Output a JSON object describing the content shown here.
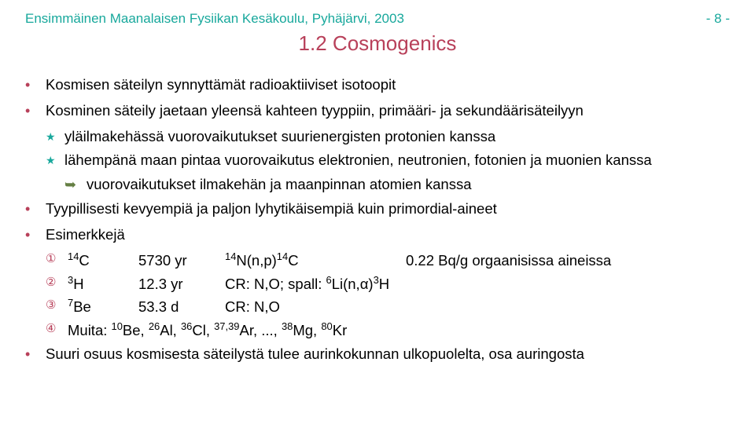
{
  "colors": {
    "header": "#18a89c",
    "title": "#b8405a",
    "bullet_top": "#b8405a",
    "star": "#18a89c",
    "arrow": "#657f43",
    "enum": "#b8405a",
    "text": "#000000"
  },
  "header": {
    "left": "Ensimmäinen Maanalaisen Fysiikan Kesäkoulu, Pyhäjärvi, 2003",
    "right": "-   8   -"
  },
  "section_title": "1.2 Cosmogenics",
  "items": {
    "b1": "Kosmisen säteilyn synnyttämät radioaktiiviset isotoopit",
    "b2": "Kosminen säteily jaetaan yleensä kahteen tyyppiin, primääri- ja sekundäärisäteilyyn",
    "s2a": "yläilmakehässä vuorovaikutukset suurienergisten protonien kanssa",
    "s2b": "lähempänä maan pintaa vuorovaikutus elektronien, neutronien, fotonien ja muonien kanssa",
    "a2b1": "vuorovaikutukset ilmakehän ja maanpinnan atomien kanssa",
    "b3": "Tyypillisesti kevyempiä ja paljon lyhytikäisempiä kuin primordial-aineet",
    "b4": "Esimerkkejä",
    "b5": "Suuri osuus kosmisesta säteilystä tulee aurinkokunnan ulkopuolelta, osa auringosta"
  },
  "examples": {
    "e1": {
      "t": "5730 yr",
      "note": "0.22 Bq/g orgaanisissa aineissa"
    },
    "e2": {
      "t": "12.3 yr"
    },
    "e3": {
      "t": "53.3 d",
      "src": "CR: N,O"
    }
  }
}
